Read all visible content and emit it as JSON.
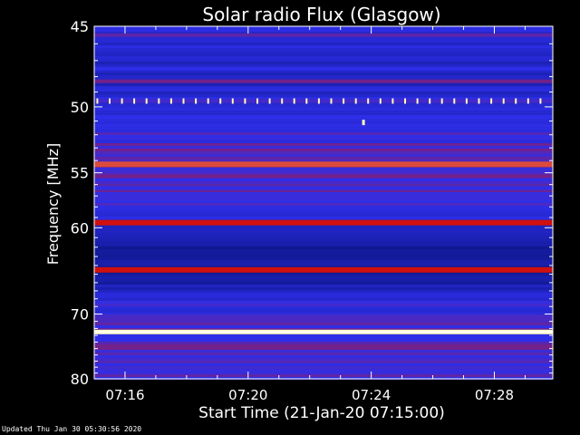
{
  "chart_data": {
    "type": "heatmap",
    "title": "Solar radio Flux (Glasgow)",
    "xlabel": "Start Time (21-Jan-20 07:15:00)",
    "ylabel_prefix": "Frequency ",
    "ylabel_unit": "[MHz]",
    "x_tick_labels": [
      "07:16",
      "07:20",
      "07:24",
      "07:28"
    ],
    "x_tick_values_min": [
      1,
      5,
      9,
      13
    ],
    "xlim_min": [
      0.0,
      14.9
    ],
    "y_tick_labels": [
      "45",
      "50",
      "55",
      "60",
      "70",
      "80"
    ],
    "y_tick_values": [
      45,
      50,
      55,
      60,
      70,
      80
    ],
    "ylim": [
      45,
      80
    ],
    "y_scale": "reciprocal",
    "bands": [
      {
        "freq": 45.5,
        "intensity": 0.55
      },
      {
        "freq": 47.5,
        "intensity": 0.45
      },
      {
        "freq": 48.3,
        "intensity": 0.6
      },
      {
        "freq": 49.6,
        "intensity": 0.5
      },
      {
        "freq": 50.7,
        "intensity": 0.45
      },
      {
        "freq": 52.5,
        "intensity": 0.4
      },
      {
        "freq": 54.3,
        "intensity": 0.85
      },
      {
        "freq": 55.3,
        "intensity": 0.6
      },
      {
        "freq": 56.3,
        "intensity": 0.45
      },
      {
        "freq": 59.5,
        "intensity": 0.8
      },
      {
        "freq": 64.5,
        "intensity": 0.8
      },
      {
        "freq": 72.5,
        "intensity": 1.0
      }
    ],
    "spikes_freq": 49.6,
    "spike_times_min": [
      0.1,
      0.5,
      0.9,
      1.3,
      1.7,
      2.1,
      2.5,
      2.9,
      3.3,
      3.7,
      4.1,
      4.5,
      4.9,
      5.3,
      5.7,
      6.1,
      6.5,
      6.9,
      7.3,
      7.7,
      8.1,
      8.5,
      8.9,
      9.3,
      9.7,
      10.1,
      10.5,
      10.9,
      11.3,
      11.7,
      12.1,
      12.5,
      12.9,
      13.3,
      13.7,
      14.1,
      14.5
    ],
    "burst": {
      "time_min": 8.75,
      "freq": 51.1
    }
  },
  "footer": {
    "updated": "Updated Thu Jan 30 05:30:56 2020"
  },
  "colors": {
    "background": "#000000",
    "low": "#0a1480",
    "mid": "#2e2ee8",
    "high": "#d01010",
    "peak": "#fff8c0"
  }
}
